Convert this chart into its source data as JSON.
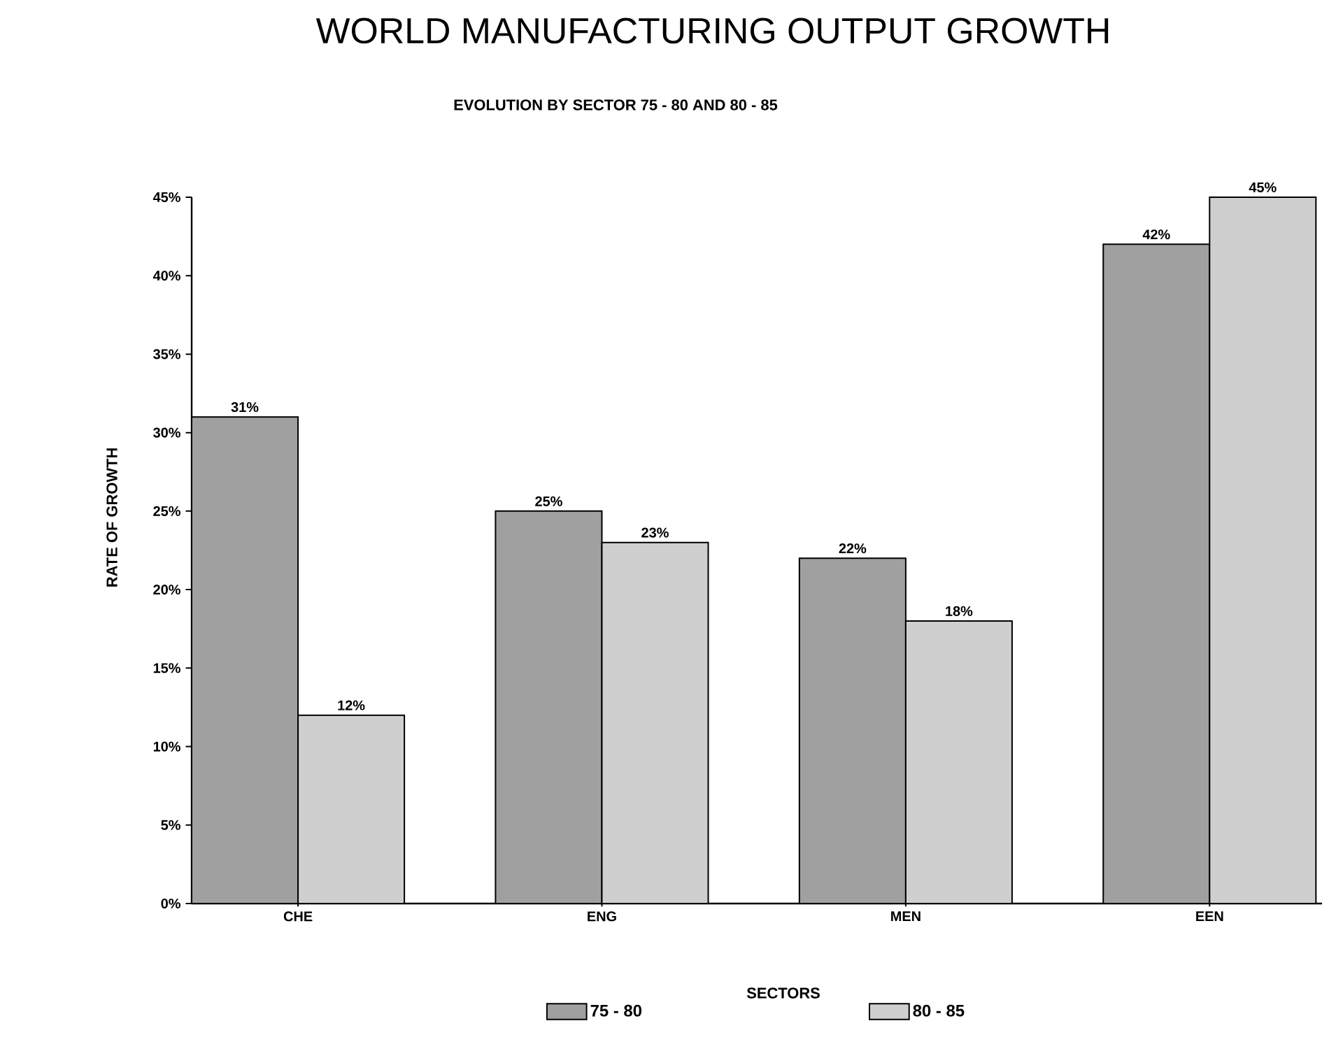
{
  "chart_data": {
    "type": "bar",
    "title": "WORLD MANUFACTURING OUTPUT GROWTH",
    "subtitle": "EVOLUTION BY SECTOR 75 - 80  AND 80 - 85",
    "xlabel": "SECTORS",
    "ylabel": "RATE OF GROWTH",
    "categories": [
      "CHE",
      "ENG",
      "MEN",
      "EEN"
    ],
    "series": [
      {
        "name": "75 - 80",
        "color": "#a0a0a0",
        "values": [
          31,
          25,
          22,
          42
        ],
        "value_labels": [
          "31%",
          "25%",
          "22%",
          "42%"
        ]
      },
      {
        "name": "80 - 85",
        "color": "#cfcfcf",
        "values": [
          12,
          23,
          18,
          45
        ],
        "value_labels": [
          "12%",
          "23%",
          "18%",
          "45%"
        ]
      }
    ],
    "ylim": [
      0,
      45
    ],
    "yticks": [
      {
        "value": 0,
        "label": "0%"
      },
      {
        "value": 5,
        "label": "5%"
      },
      {
        "value": 10,
        "label": "10%"
      },
      {
        "value": 15,
        "label": "15%"
      },
      {
        "value": 20,
        "label": "20%"
      },
      {
        "value": 25,
        "label": "25%"
      },
      {
        "value": 30,
        "label": "30%"
      },
      {
        "value": 35,
        "label": "35%"
      },
      {
        "value": 40,
        "label": "40%"
      },
      {
        "value": 45,
        "label": "45%"
      }
    ],
    "legend": "bottom",
    "grid": false
  }
}
